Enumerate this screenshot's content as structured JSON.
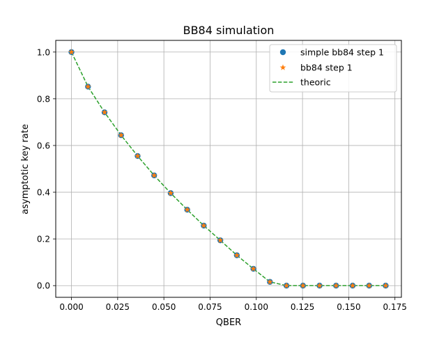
{
  "chart_data": {
    "type": "line",
    "title": "BB84 simulation",
    "xlabel": "QBER",
    "ylabel": "asymptotic key rate",
    "xlim": [
      -0.0085,
      0.1785
    ],
    "ylim": [
      -0.05,
      1.05
    ],
    "xticks": [
      0.0,
      0.025,
      0.05,
      0.075,
      0.1,
      0.125,
      0.15,
      0.175
    ],
    "xtick_labels": [
      "0.000",
      "0.025",
      "0.050",
      "0.075",
      "0.100",
      "0.125",
      "0.150",
      "0.175"
    ],
    "yticks": [
      0.0,
      0.2,
      0.4,
      0.6,
      0.8,
      1.0
    ],
    "ytick_labels": [
      "0.0",
      "0.2",
      "0.4",
      "0.6",
      "0.8",
      "1.0"
    ],
    "grid": true,
    "legend_position": "top-right",
    "x": [
      0.0,
      0.00895,
      0.0179,
      0.02684,
      0.03579,
      0.04474,
      0.05368,
      0.06263,
      0.07158,
      0.08053,
      0.08947,
      0.09842,
      0.10737,
      0.11632,
      0.12526,
      0.13421,
      0.14316,
      0.15211,
      0.16105,
      0.17
    ],
    "series": [
      {
        "name": "simple bb84 step 1",
        "marker": "circle",
        "color": "#1f77b4",
        "values": [
          1.0,
          0.852,
          0.742,
          0.644,
          0.555,
          0.472,
          0.396,
          0.325,
          0.257,
          0.194,
          0.13,
          0.072,
          0.016,
          0.0,
          0.0,
          0.0,
          0.0,
          0.0,
          0.0,
          0.0
        ]
      },
      {
        "name": "bb84 step 1",
        "marker": "star",
        "color": "#ff7f0e",
        "values": [
          1.0,
          0.852,
          0.742,
          0.644,
          0.555,
          0.472,
          0.396,
          0.325,
          0.257,
          0.194,
          0.13,
          0.072,
          0.016,
          0.0,
          0.0,
          0.0,
          0.0,
          0.0,
          0.0,
          0.0
        ]
      },
      {
        "name": "theoric",
        "marker": "dashed-line",
        "color": "#2ca02c",
        "values": [
          1.0,
          0.852,
          0.742,
          0.644,
          0.555,
          0.472,
          0.396,
          0.325,
          0.257,
          0.194,
          0.13,
          0.072,
          0.016,
          0.0,
          0.0,
          0.0,
          0.0,
          0.0,
          0.0,
          0.0
        ]
      }
    ]
  }
}
